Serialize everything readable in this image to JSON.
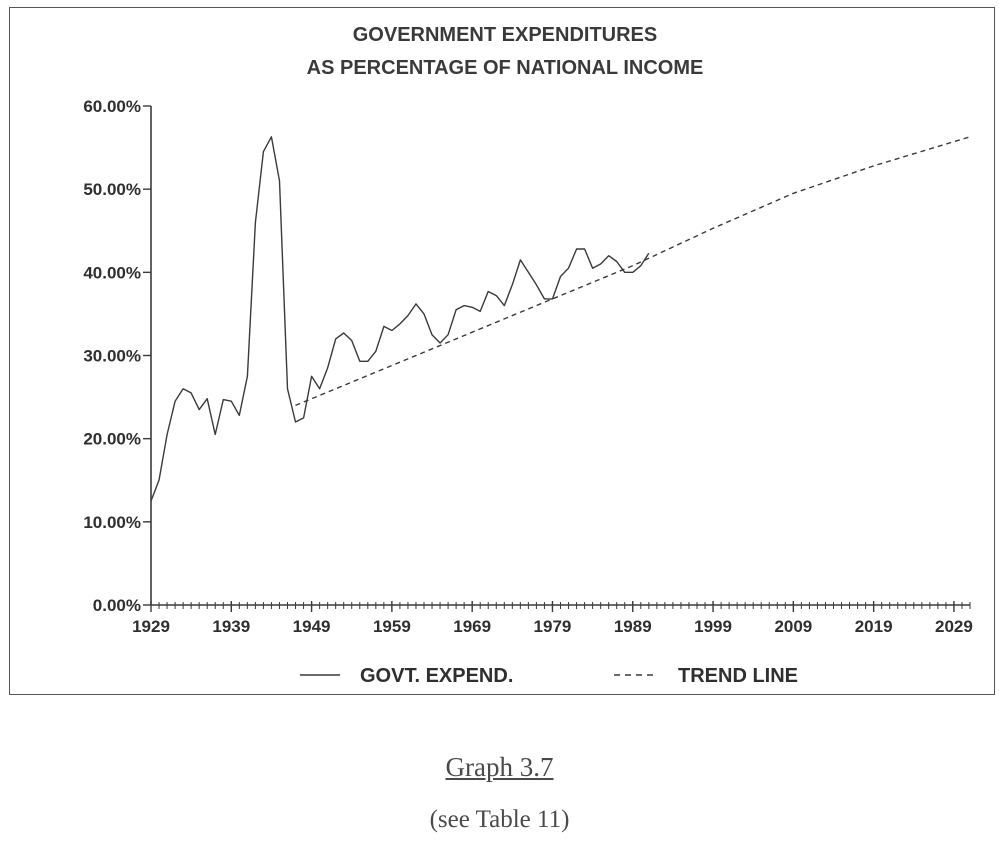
{
  "caption": "Graph 3.7",
  "subcaption": "(see Table 11)",
  "chart_data": {
    "type": "line",
    "title": "GOVERNMENT EXPENDITURES",
    "subtitle": "AS PERCENTAGE OF NATIONAL INCOME",
    "xlabel": "",
    "ylabel": "",
    "xlim": [
      1929,
      2031
    ],
    "ylim": [
      0,
      60
    ],
    "x_ticks": [
      1929,
      1939,
      1949,
      1959,
      1969,
      1979,
      1989,
      1999,
      2009,
      2019,
      2029
    ],
    "y_ticks": [
      0,
      10,
      20,
      30,
      40,
      50,
      60
    ],
    "y_tick_labels": [
      "0.00%",
      "10.00%",
      "20.00%",
      "30.00%",
      "40.00%",
      "50.00%",
      "60.00%"
    ],
    "grid": false,
    "legend_position": "bottom",
    "series": [
      {
        "name": "GOVT. EXPEND.",
        "style": "solid",
        "color": "#3a3a3a",
        "x": [
          1929,
          1930,
          1931,
          1932,
          1933,
          1934,
          1935,
          1936,
          1937,
          1938,
          1939,
          1940,
          1941,
          1942,
          1943,
          1944,
          1945,
          1946,
          1947,
          1948,
          1949,
          1950,
          1951,
          1952,
          1953,
          1954,
          1955,
          1956,
          1957,
          1958,
          1959,
          1960,
          1961,
          1962,
          1963,
          1964,
          1965,
          1966,
          1967,
          1968,
          1969,
          1970,
          1971,
          1972,
          1973,
          1974,
          1975,
          1976,
          1977,
          1978,
          1979,
          1980,
          1981,
          1982,
          1983,
          1984,
          1985,
          1986,
          1987,
          1988,
          1989,
          1990,
          1991
        ],
        "values": [
          12.5,
          15.0,
          20.5,
          24.5,
          26.0,
          25.5,
          23.5,
          24.8,
          20.5,
          24.7,
          24.5,
          22.8,
          27.5,
          46.0,
          54.5,
          56.3,
          51.0,
          26.0,
          22.0,
          22.5,
          27.5,
          26.0,
          28.5,
          32.0,
          32.7,
          31.8,
          29.3,
          29.3,
          30.5,
          33.5,
          33.0,
          33.8,
          34.8,
          36.2,
          35.0,
          32.5,
          31.5,
          32.5,
          35.5,
          36.0,
          35.8,
          35.3,
          37.7,
          37.2,
          36.0,
          38.5,
          41.5,
          40.0,
          38.5,
          36.8,
          36.8,
          39.5,
          40.5,
          42.8,
          42.8,
          40.5,
          41.0,
          42.0,
          41.3,
          40.0,
          40.0,
          40.8,
          42.3
        ]
      },
      {
        "name": "TREND LINE",
        "style": "dashed",
        "color": "#3a3a3a",
        "x": [
          1947,
          1959,
          1969,
          1979,
          1989,
          1999,
          2009,
          2019,
          2031
        ],
        "values": [
          24.0,
          28.8,
          32.8,
          36.8,
          40.8,
          45.3,
          49.5,
          52.8,
          56.3
        ]
      }
    ]
  }
}
